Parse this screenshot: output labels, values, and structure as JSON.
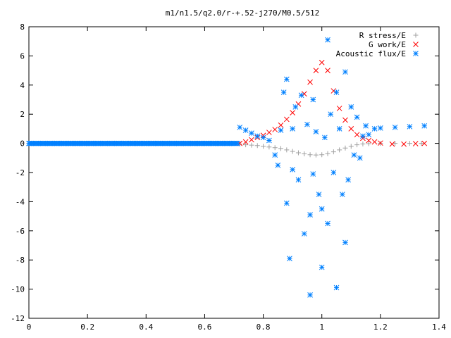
{
  "chart_data": {
    "type": "scatter",
    "title": "m1/n1.5/q2.0/r-+.52-j270/M0.5/512",
    "xlabel": "",
    "ylabel": "",
    "xlim": [
      0,
      1.4
    ],
    "ylim": [
      -12,
      8
    ],
    "x_ticks": [
      "0",
      "0.2",
      "0.4",
      "0.6",
      "0.8",
      "1",
      "1.2",
      "1.4"
    ],
    "y_ticks": [
      "-12",
      "-10",
      "-8",
      "-6",
      "-4",
      "-2",
      "0",
      "2",
      "4",
      "6",
      "8"
    ],
    "legend_position": "top-right",
    "series": [
      {
        "name": "R stress/E",
        "marker": "plus",
        "color": "#a0a0a0",
        "points": [
          [
            0.72,
            -0.05
          ],
          [
            0.74,
            -0.1
          ],
          [
            0.76,
            -0.12
          ],
          [
            0.78,
            -0.15
          ],
          [
            0.8,
            -0.2
          ],
          [
            0.82,
            -0.25
          ],
          [
            0.84,
            -0.3
          ],
          [
            0.86,
            -0.35
          ],
          [
            0.88,
            -0.45
          ],
          [
            0.9,
            -0.55
          ],
          [
            0.92,
            -0.65
          ],
          [
            0.94,
            -0.72
          ],
          [
            0.96,
            -0.78
          ],
          [
            0.98,
            -0.8
          ],
          [
            1.0,
            -0.78
          ],
          [
            1.02,
            -0.7
          ],
          [
            1.04,
            -0.58
          ],
          [
            1.06,
            -0.45
          ],
          [
            1.08,
            -0.32
          ],
          [
            1.1,
            -0.2
          ],
          [
            1.12,
            -0.1
          ],
          [
            1.14,
            -0.04
          ],
          [
            1.16,
            -0.02
          ],
          [
            1.2,
            0.0
          ],
          [
            1.25,
            0.0
          ],
          [
            1.3,
            0.0
          ],
          [
            1.34,
            0.0
          ]
        ]
      },
      {
        "name": "G work/E",
        "marker": "cross",
        "color": "#ff0000",
        "points": [
          [
            0.72,
            0.0
          ],
          [
            0.74,
            0.1
          ],
          [
            0.76,
            0.25
          ],
          [
            0.78,
            0.4
          ],
          [
            0.8,
            0.55
          ],
          [
            0.82,
            0.75
          ],
          [
            0.84,
            0.95
          ],
          [
            0.86,
            1.25
          ],
          [
            0.88,
            1.65
          ],
          [
            0.9,
            2.1
          ],
          [
            0.92,
            2.7
          ],
          [
            0.94,
            3.4
          ],
          [
            0.96,
            4.2
          ],
          [
            0.98,
            5.0
          ],
          [
            1.0,
            5.55
          ],
          [
            1.02,
            5.0
          ],
          [
            1.04,
            3.6
          ],
          [
            1.06,
            2.4
          ],
          [
            1.08,
            1.6
          ],
          [
            1.1,
            1.0
          ],
          [
            1.12,
            0.6
          ],
          [
            1.14,
            0.35
          ],
          [
            1.16,
            0.2
          ],
          [
            1.18,
            0.1
          ],
          [
            1.2,
            0.02
          ],
          [
            1.24,
            -0.05
          ],
          [
            1.28,
            -0.05
          ],
          [
            1.32,
            -0.02
          ],
          [
            1.35,
            0.0
          ]
        ]
      },
      {
        "name": "Acoustic flux/E",
        "marker": "star",
        "color": "#0080ff",
        "points": [
          [
            0.72,
            1.1
          ],
          [
            0.74,
            0.9
          ],
          [
            0.76,
            0.7
          ],
          [
            0.78,
            0.5
          ],
          [
            0.8,
            0.4
          ],
          [
            0.82,
            0.2
          ],
          [
            0.84,
            -0.8
          ],
          [
            0.85,
            -1.5
          ],
          [
            0.86,
            0.9
          ],
          [
            0.87,
            3.5
          ],
          [
            0.88,
            4.4
          ],
          [
            0.88,
            -4.1
          ],
          [
            0.89,
            -7.9
          ],
          [
            0.9,
            1.0
          ],
          [
            0.9,
            -1.8
          ],
          [
            0.91,
            2.5
          ],
          [
            0.92,
            -2.5
          ],
          [
            0.93,
            3.3
          ],
          [
            0.94,
            -6.2
          ],
          [
            0.95,
            1.3
          ],
          [
            0.96,
            -10.4
          ],
          [
            0.96,
            -4.9
          ],
          [
            0.97,
            3.0
          ],
          [
            0.97,
            -2.1
          ],
          [
            0.98,
            0.8
          ],
          [
            0.99,
            -3.5
          ],
          [
            1.0,
            -8.5
          ],
          [
            1.0,
            -4.5
          ],
          [
            1.01,
            0.4
          ],
          [
            1.02,
            7.1
          ],
          [
            1.02,
            -5.5
          ],
          [
            1.03,
            2.0
          ],
          [
            1.04,
            -2.0
          ],
          [
            1.05,
            3.5
          ],
          [
            1.05,
            -9.9
          ],
          [
            1.06,
            1.0
          ],
          [
            1.07,
            -3.5
          ],
          [
            1.08,
            4.9
          ],
          [
            1.08,
            -6.8
          ],
          [
            1.09,
            -2.5
          ],
          [
            1.1,
            2.5
          ],
          [
            1.11,
            -0.8
          ],
          [
            1.12,
            1.8
          ],
          [
            1.13,
            -1.0
          ],
          [
            1.14,
            0.5
          ],
          [
            1.15,
            1.2
          ],
          [
            1.16,
            0.6
          ],
          [
            1.18,
            1.0
          ],
          [
            1.2,
            1.05
          ],
          [
            1.25,
            1.1
          ],
          [
            1.3,
            1.15
          ],
          [
            1.35,
            1.2
          ]
        ]
      }
    ]
  }
}
